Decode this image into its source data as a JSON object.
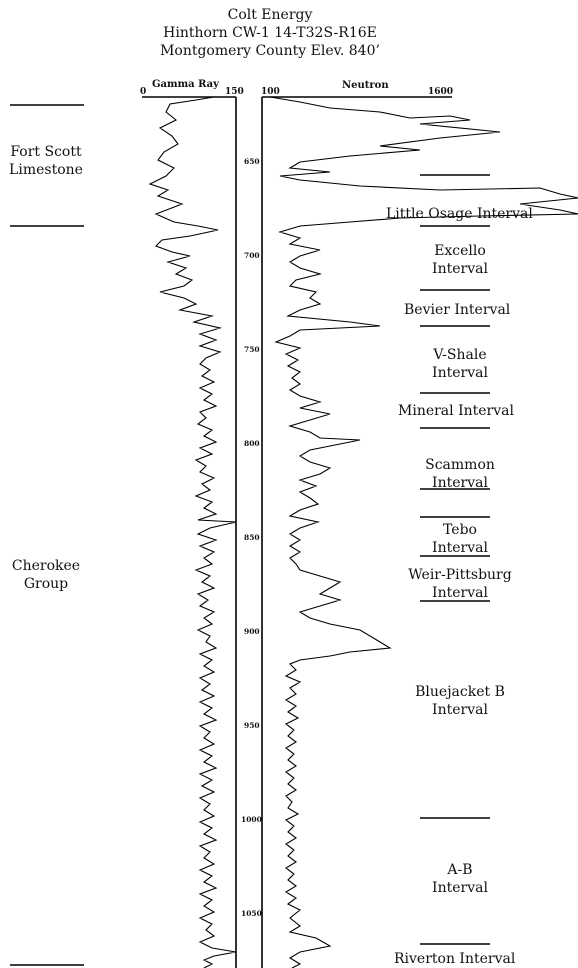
{
  "header": {
    "company": "Colt Energy",
    "well": "Hinthorn CW-1  14-T32S-R16E",
    "county": "Montgomery County   Elev.  840’"
  },
  "tracks": {
    "gamma_label": "Gamma Ray",
    "gamma_min": "0",
    "gamma_max": "150",
    "neutron_label": "Neutron",
    "neutron_min": "100",
    "neutron_max": "1600"
  },
  "depth_ticks": [
    "650",
    "700",
    "750",
    "800",
    "850",
    "900",
    "950",
    "1000",
    "1050"
  ],
  "groups": {
    "fort_scott": "Fort Scott\nLimestone",
    "cherokee": "Cherokee\nGroup"
  },
  "intervals": [
    {
      "label": "Little Osage Interval"
    },
    {
      "label": "Excello\nInterval"
    },
    {
      "label": "Bevier Interval"
    },
    {
      "label": "V-Shale\nInterval"
    },
    {
      "label": "Mineral Interval"
    },
    {
      "label": "Scammon\nInterval"
    },
    {
      "label": "Tebo\nInterval"
    },
    {
      "label": "Weir-Pittsburg\nInterval"
    },
    {
      "label": "Bluejacket B\nInterval"
    },
    {
      "label": "A-B\nInterval"
    },
    {
      "label": "Riverton Interval"
    }
  ]
}
